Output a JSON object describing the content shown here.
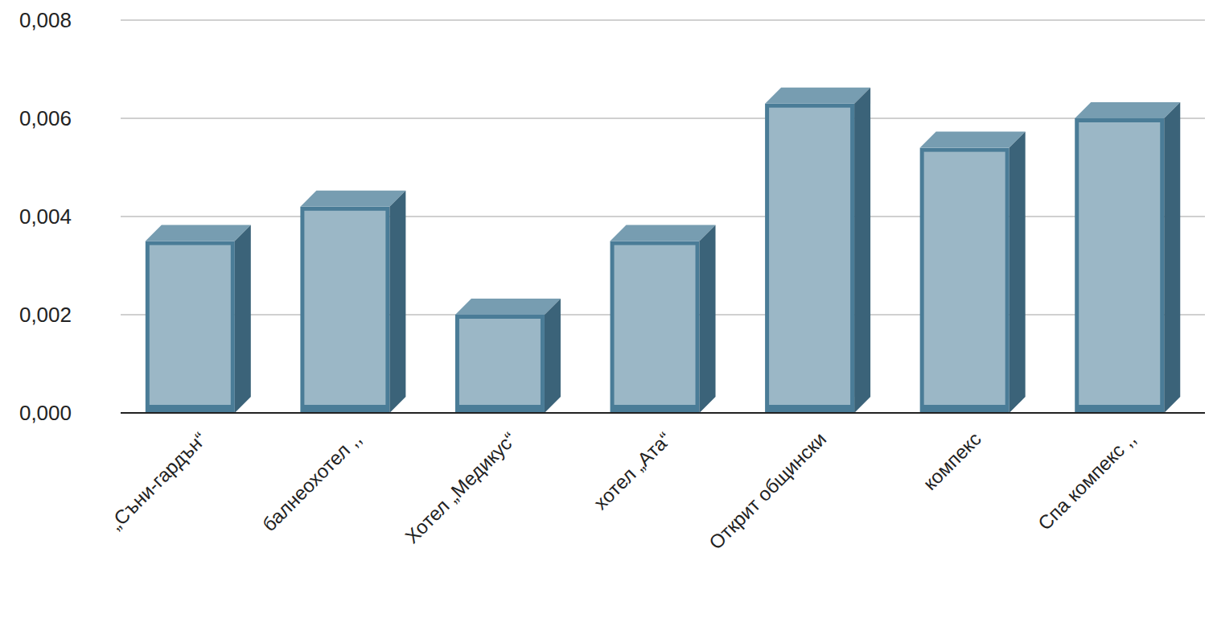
{
  "chart_data": {
    "type": "bar",
    "categories": [
      "„Съни-гардън“",
      "балнеохотел ,,",
      "Хотел „Медикус“",
      "хотел „Ата“",
      "Открит общински",
      "компекс",
      "Спа компекс ,,"
    ],
    "values": [
      0.0035,
      0.0042,
      0.002,
      0.0035,
      0.0063,
      0.0054,
      0.006
    ],
    "color": "#4a7c97",
    "ylim": [
      0,
      0.008
    ],
    "yticks": [
      {
        "value": 0,
        "label": "0,000"
      },
      {
        "value": 0.002,
        "label": "0,002"
      },
      {
        "value": 0.004,
        "label": "0,004"
      },
      {
        "value": 0.006,
        "label": "0,006"
      },
      {
        "value": 0.008,
        "label": "0,008"
      }
    ],
    "grid": true
  }
}
